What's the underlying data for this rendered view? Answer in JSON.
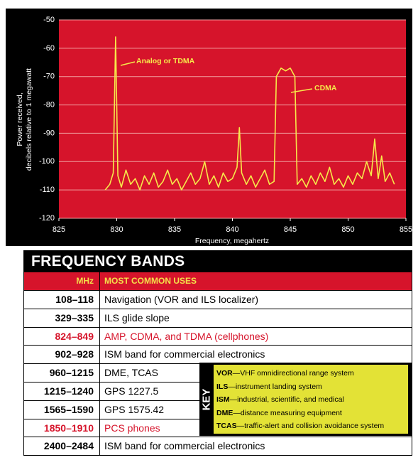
{
  "chart_data": {
    "type": "line",
    "ylabel": [
      "Power received,",
      "decibels relative to 1 megawatt"
    ],
    "xlabel": "Frequency, megahertz",
    "annotations": [
      "Analog or TDMA",
      "CDMA"
    ],
    "color": "#f6e94a",
    "background": "#d6142b",
    "grid": true,
    "xlim": [
      825,
      855
    ],
    "xticks": [
      825,
      830,
      835,
      840,
      845,
      850,
      855
    ],
    "ylim": [
      -120,
      -50
    ],
    "yticks": [
      -120,
      -110,
      -100,
      -90,
      -80,
      -70,
      -60,
      -50
    ],
    "x": [
      829,
      829.4,
      829.7,
      829.9,
      830.1,
      830.4,
      830.8,
      831.2,
      831.6,
      832,
      832.4,
      832.8,
      833.2,
      833.6,
      834,
      834.4,
      834.8,
      835.2,
      835.6,
      836,
      836.4,
      836.8,
      837.2,
      837.6,
      838,
      838.4,
      838.8,
      839.2,
      839.6,
      840,
      840.4,
      840.6,
      840.8,
      841.2,
      841.6,
      842,
      842.4,
      842.8,
      843.2,
      843.6,
      843.8,
      844.2,
      844.6,
      845,
      845.4,
      845.6,
      846,
      846.4,
      846.8,
      847.2,
      847.6,
      848,
      848.4,
      848.8,
      849.2,
      849.6,
      850,
      850.4,
      850.8,
      851.2,
      851.6,
      852,
      852.3,
      852.6,
      852.9,
      853.2,
      853.6,
      854
    ],
    "values": [
      -110,
      -108,
      -104,
      -56,
      -105,
      -109,
      -103,
      -108,
      -106,
      -110,
      -105,
      -108,
      -104,
      -109,
      -107,
      -103,
      -108,
      -106,
      -110,
      -107,
      -104,
      -108,
      -106,
      -100,
      -108,
      -105,
      -109,
      -104,
      -107,
      -106,
      -102,
      -88,
      -104,
      -108,
      -105,
      -109,
      -106,
      -103,
      -108,
      -107,
      -70,
      -67,
      -68,
      -67,
      -70,
      -108,
      -106,
      -109,
      -105,
      -108,
      -104,
      -107,
      -102,
      -108,
      -106,
      -109,
      -105,
      -108,
      -104,
      -106,
      -100,
      -105,
      -92,
      -106,
      -98,
      -107,
      -104,
      -108
    ]
  },
  "table": {
    "title": "FREQUENCY BANDS",
    "header": [
      "MHz",
      "MOST COMMON USES"
    ],
    "rows": [
      [
        "108–118",
        "Navigation (VOR and ILS localizer)"
      ],
      [
        "329–335",
        "ILS glide slope"
      ],
      [
        "824–849",
        "AMP, CDMA, and TDMA (cellphones)"
      ],
      [
        "902–928",
        "ISM band for commercial electronics"
      ],
      [
        "960–1215",
        "DME, TCAS"
      ],
      [
        "1215–1240",
        "GPS 1227.5"
      ],
      [
        "1565–1590",
        "GPS 1575.42"
      ],
      [
        "1850–1910",
        "PCS phones"
      ],
      [
        "2400–2484",
        "ISM band for commercial electronics"
      ]
    ]
  },
  "key": {
    "title": "KEY",
    "items": [
      [
        "VOR",
        "—VHF omnidirectional range system"
      ],
      [
        "ILS",
        "—instrument landing system"
      ],
      [
        "ISM",
        "—industrial, scientific, and medical"
      ],
      [
        "DME",
        "—distance measuring equipment"
      ],
      [
        "TCAS",
        "—traffic-alert and collision avoidance system"
      ]
    ]
  }
}
